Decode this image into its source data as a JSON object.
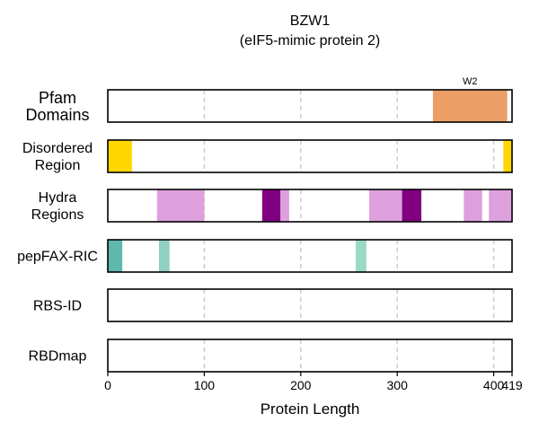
{
  "chart_data": {
    "type": "bar",
    "title": "BZW1",
    "subtitle": "(eIF5-mimic protein 2)",
    "xlabel": "Protein Length",
    "xlim": [
      0,
      419
    ],
    "xticks": [
      0,
      100,
      200,
      300,
      400,
      419
    ],
    "grid": "x-dashed",
    "tracks": [
      {
        "label_lines": [
          "Pfam",
          "Domains"
        ],
        "segments": [
          {
            "start": 337,
            "end": 414,
            "color": "#eb9f67",
            "label": "W2"
          }
        ]
      },
      {
        "label_lines": [
          "Disordered",
          "Region"
        ],
        "segments": [
          {
            "start": 0,
            "end": 25,
            "color": "#ffd700"
          },
          {
            "start": 410,
            "end": 419,
            "color": "#ffd700"
          }
        ]
      },
      {
        "label_lines": [
          "Hydra",
          "Regions"
        ],
        "segments": [
          {
            "start": 51,
            "end": 100,
            "color": "#dda0dd"
          },
          {
            "start": 160,
            "end": 179,
            "color": "#800080"
          },
          {
            "start": 179,
            "end": 188,
            "color": "#dda0dd"
          },
          {
            "start": 271,
            "end": 305,
            "color": "#dda0dd"
          },
          {
            "start": 305,
            "end": 325,
            "color": "#800080"
          },
          {
            "start": 369,
            "end": 388,
            "color": "#dda0dd"
          },
          {
            "start": 395,
            "end": 419,
            "color": "#dda0dd"
          }
        ]
      },
      {
        "label_lines": [
          "pepFAX-RIC"
        ],
        "segments": [
          {
            "start": 0,
            "end": 15,
            "color": "#5fb8ad"
          },
          {
            "start": 53,
            "end": 64,
            "color": "#8fd0c3"
          },
          {
            "start": 257,
            "end": 268,
            "color": "#9ad9c4"
          }
        ]
      },
      {
        "label_lines": [
          "RBS-ID"
        ],
        "segments": []
      },
      {
        "label_lines": [
          "RBDmap"
        ],
        "segments": []
      }
    ]
  }
}
